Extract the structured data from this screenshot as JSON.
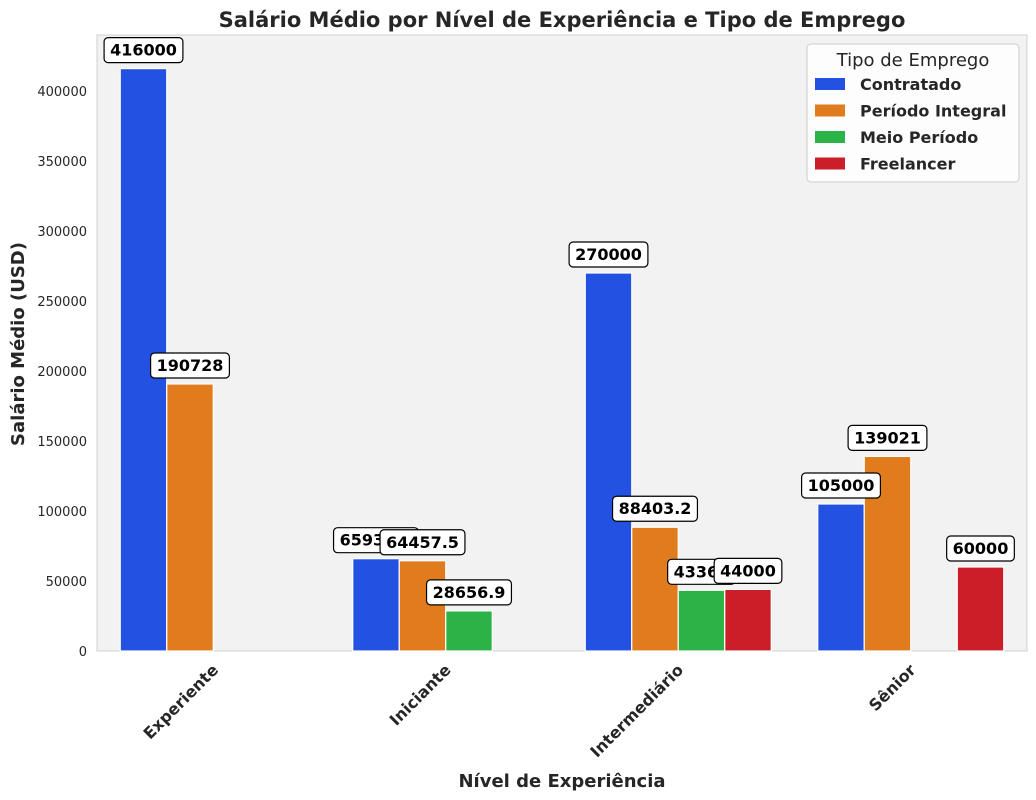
{
  "chart_data": {
    "type": "bar",
    "title": "Salário Médio por Nível de Experiência e Tipo de Emprego",
    "xlabel": "Nível de Experiência",
    "ylabel": "Salário Médio (USD)",
    "categories": [
      "Experiente",
      "Iniciante",
      "Intermediário",
      "Sênior"
    ],
    "ylim": [
      0,
      440000
    ],
    "yticks": [
      0,
      50000,
      100000,
      150000,
      200000,
      250000,
      300000,
      350000,
      400000
    ],
    "ytick_labels": [
      "0",
      "50000",
      "100000",
      "150000",
      "200000",
      "250000",
      "300000",
      "350000",
      "400000"
    ],
    "grid": false,
    "background": "#f2f2f2",
    "legend": {
      "title": "Tipo de Emprego",
      "placement": "top-right"
    },
    "series": [
      {
        "name": "Contratado",
        "color": "#2351e2",
        "values": [
          416000,
          65937,
          270000,
          105000
        ],
        "labels": [
          "416000",
          "65937.5",
          "270000",
          "105000"
        ]
      },
      {
        "name": "Período Integral",
        "color": "#e17c1e",
        "values": [
          190728,
          64457.5,
          88403.2,
          139021
        ],
        "labels": [
          "190728",
          "64457.5",
          "88403.2",
          "139021"
        ]
      },
      {
        "name": "Meio Período",
        "color": "#2bb347",
        "values": [
          null,
          28656.9,
          43360,
          null
        ],
        "labels": [
          null,
          "28656.9",
          "43360",
          null
        ]
      },
      {
        "name": "Freelancer",
        "color": "#cc1e28",
        "values": [
          null,
          null,
          44000,
          60000
        ],
        "labels": [
          null,
          null,
          "44000",
          "60000"
        ]
      }
    ]
  }
}
